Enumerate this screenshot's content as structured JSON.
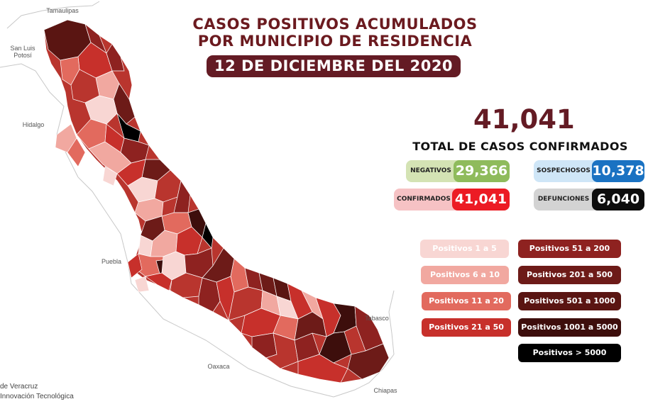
{
  "header": {
    "title_line1": "CASOS POSITIVOS ACUMULADOS",
    "title_line2": "POR MUNICIPIO DE RESIDENCIA",
    "date": "12 DE DICIEMBRE DEL 2020"
  },
  "summary": {
    "total": "41,041",
    "total_label": "TOTAL DE CASOS CONFIRMADOS",
    "stats": [
      {
        "label": "NEGATIVOS",
        "value": "29,366",
        "label_bg": "#d4e3b4",
        "value_bg": "#8fbb5c"
      },
      {
        "label": "SOSPECHOSOS",
        "value": "10,378",
        "label_bg": "#cfe6f7",
        "value_bg": "#1a72c2"
      },
      {
        "label": "CONFIRMADOS",
        "value": "41,041",
        "label_bg": "#f6c2c4",
        "value_bg": "#ec1b24"
      },
      {
        "label": "DEFUNCIONES",
        "value": "6,040",
        "label_bg": "#d3d3d3",
        "value_bg": "#0d0d0d"
      }
    ]
  },
  "legend": [
    {
      "label": "Positivos 1 a 5",
      "color": "#f8d6d3"
    },
    {
      "label": "Positivos 6 a 10",
      "color": "#f1a8a0"
    },
    {
      "label": "Positivos 11 a 20",
      "color": "#e26a5e"
    },
    {
      "label": "Positivos 21 a 50",
      "color": "#c7302b"
    },
    {
      "label": "Positivos 51 a 200",
      "color": "#8e2220"
    },
    {
      "label": "Positivos 201 a 500",
      "color": "#6d1b18"
    },
    {
      "label": "Positivos 501 a 1000",
      "color": "#5a1512"
    },
    {
      "label": "Positivos 1001 a 5000",
      "color": "#3d0e0c"
    },
    {
      "label": "Positivos > 5000",
      "color": "#000000"
    }
  ],
  "map": {
    "neighbor_states": [
      "Tamaulipas",
      "San Luis Potosí",
      "Hidalgo",
      "Puebla",
      "Oaxaca",
      "Tabasco",
      "Chiapas"
    ]
  },
  "credits": {
    "line1": "de Veracruz",
    "line2": "Innovación Tecnológica"
  }
}
